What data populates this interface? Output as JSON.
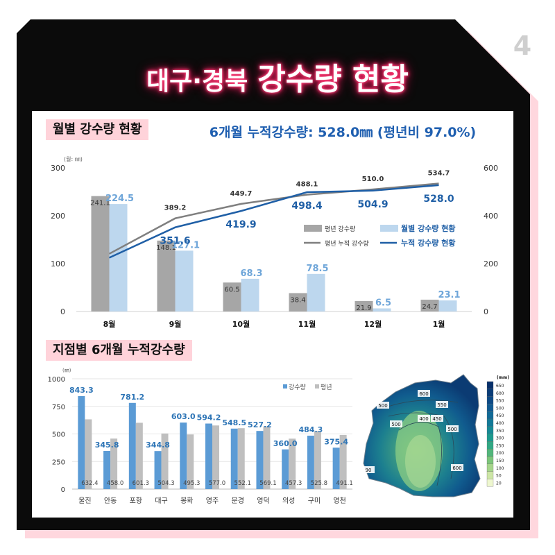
{
  "page_number": "4",
  "title": {
    "small": "대구·경북",
    "big": "강수량 현황"
  },
  "section1": {
    "label": "월별 강수량 현황",
    "cumulative": "6개월 누적강수량: 528.0㎜ (평년비 97.0%)"
  },
  "section2": {
    "label": "지점별 6개월 누적강수량"
  },
  "colors": {
    "frame": "#0a0a0a",
    "accent_pink": "#ffd3da",
    "blue_bar": "#bdd7ee",
    "gray_bar": "#a6a6a6",
    "blue_line": "#1f5fa6",
    "gray_line": "#7f7f7f",
    "station_blue": "#5b9bd5",
    "station_gray": "#bfbfbf"
  },
  "chart_data": [
    {
      "type": "bar",
      "unit_label": "(월: ㎜)",
      "categories": [
        "8월",
        "9월",
        "10월",
        "11월",
        "12월",
        "1월"
      ],
      "ylim": [
        0,
        300
      ],
      "yticks": [
        0,
        100,
        200,
        300
      ],
      "y2lim": [
        0,
        600
      ],
      "y2ticks": [
        0,
        200,
        400,
        600
      ],
      "series": [
        {
          "name": "평년 강수량",
          "kind": "bar",
          "axis": "left",
          "values": [
            241.1,
            148.1,
            60.5,
            38.4,
            21.9,
            24.7
          ]
        },
        {
          "name": "월별 강수량 현황",
          "kind": "bar",
          "axis": "left",
          "values": [
            224.5,
            127.1,
            68.3,
            78.5,
            6.5,
            23.1
          ]
        },
        {
          "name": "평년 누적 강수량",
          "kind": "line",
          "axis": "right",
          "values": [
            241.1,
            389.2,
            449.7,
            488.1,
            510.0,
            534.7
          ]
        },
        {
          "name": "누적 강수량 현황",
          "kind": "line",
          "axis": "right",
          "values": [
            224.5,
            351.6,
            419.9,
            498.4,
            504.9,
            528.0
          ]
        }
      ],
      "legend_position": "right"
    },
    {
      "type": "bar",
      "unit_label": "(㎜)",
      "categories": [
        "울진",
        "안동",
        "포항",
        "대구",
        "봉화",
        "영주",
        "문경",
        "영덕",
        "의성",
        "구미",
        "영천"
      ],
      "ylim": [
        0,
        1000
      ],
      "yticks": [
        0,
        250,
        500,
        750,
        1000
      ],
      "series": [
        {
          "name": "강수량",
          "values": [
            843.3,
            345.8,
            781.2,
            344.8,
            603.0,
            594.2,
            548.5,
            527.2,
            360.0,
            484.3,
            375.4
          ]
        },
        {
          "name": "평년",
          "values": [
            632.4,
            458.0,
            601.3,
            504.3,
            495.3,
            577.0,
            552.1,
            569.1,
            457.3,
            525.8,
            491.1
          ]
        }
      ],
      "legend_position": "top-right"
    }
  ],
  "map": {
    "contour_labels": [
      "600",
      "550",
      "400",
      "450",
      "500",
      "500",
      "500",
      "600",
      "90"
    ],
    "colorbar_unit": "(mm)",
    "colorbar_ticks": [
      "650",
      "600",
      "550",
      "500",
      "450",
      "400",
      "350",
      "300",
      "250",
      "200",
      "150",
      "100",
      "50",
      "20"
    ],
    "colorbar_colors": [
      "#08306b",
      "#0b3d78",
      "#0d4a86",
      "#105a92",
      "#116a97",
      "#137a98",
      "#168a95",
      "#1c9a8e",
      "#31a884",
      "#52b67b",
      "#7cc57a",
      "#a5d58b",
      "#cde6a6",
      "#eef7cf"
    ]
  }
}
